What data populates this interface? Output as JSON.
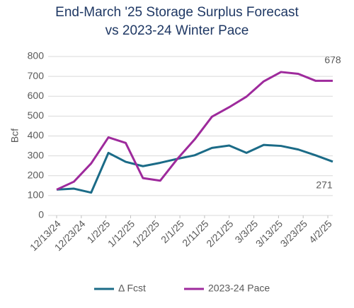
{
  "chart_data": {
    "type": "line",
    "title": [
      "End-March '25 Storage Surplus Forecast",
      "vs 2023-24 Winter Pace"
    ],
    "y_label": "Bcf",
    "x": [
      "2024-12-13",
      "2024-12-20",
      "2024-12-27",
      "2025-01-03",
      "2025-01-10",
      "2025-01-17",
      "2025-01-24",
      "2025-01-31",
      "2025-02-07",
      "2025-02-14",
      "2025-02-21",
      "2025-02-28",
      "2025-03-07",
      "2025-03-14",
      "2025-03-21",
      "2025-03-28",
      "2025-04-04"
    ],
    "series": [
      {
        "name": "Δ Fcst",
        "color": "#1b6b87",
        "values": [
          130,
          135,
          115,
          315,
          270,
          248,
          265,
          285,
          303,
          340,
          352,
          315,
          355,
          350,
          332,
          303,
          271
        ]
      },
      {
        "name": "2023-24 Pace",
        "color": "#9e2a9c",
        "values": [
          130,
          170,
          262,
          393,
          365,
          188,
          175,
          285,
          383,
          497,
          545,
          598,
          675,
          722,
          713,
          678,
          678
        ]
      }
    ],
    "annotations": [
      "678",
      "271"
    ],
    "xlim": [
      "2024-12-13",
      "2025-04-04"
    ],
    "xticks": [
      {
        "value": "2024-12-13",
        "label": "12/13/24"
      },
      {
        "value": "2024-12-23",
        "label": "12/23/24"
      },
      {
        "value": "2025-01-02",
        "label": "1/2/25"
      },
      {
        "value": "2025-01-12",
        "label": "1/12/25"
      },
      {
        "value": "2025-01-22",
        "label": "1/22/25"
      },
      {
        "value": "2025-02-01",
        "label": "2/1/25"
      },
      {
        "value": "2025-02-11",
        "label": "2/11/25"
      },
      {
        "value": "2025-02-21",
        "label": "2/21/25"
      },
      {
        "value": "2025-03-03",
        "label": "3/3/25"
      },
      {
        "value": "2025-03-13",
        "label": "3/13/25"
      },
      {
        "value": "2025-03-23",
        "label": "3/23/25"
      },
      {
        "value": "2025-04-02",
        "label": "4/2/25"
      }
    ],
    "ylim": [
      0,
      800
    ],
    "yticks": [
      0,
      100,
      200,
      300,
      400,
      500,
      600,
      700,
      800
    ],
    "grid": true,
    "legend": "bottom"
  }
}
